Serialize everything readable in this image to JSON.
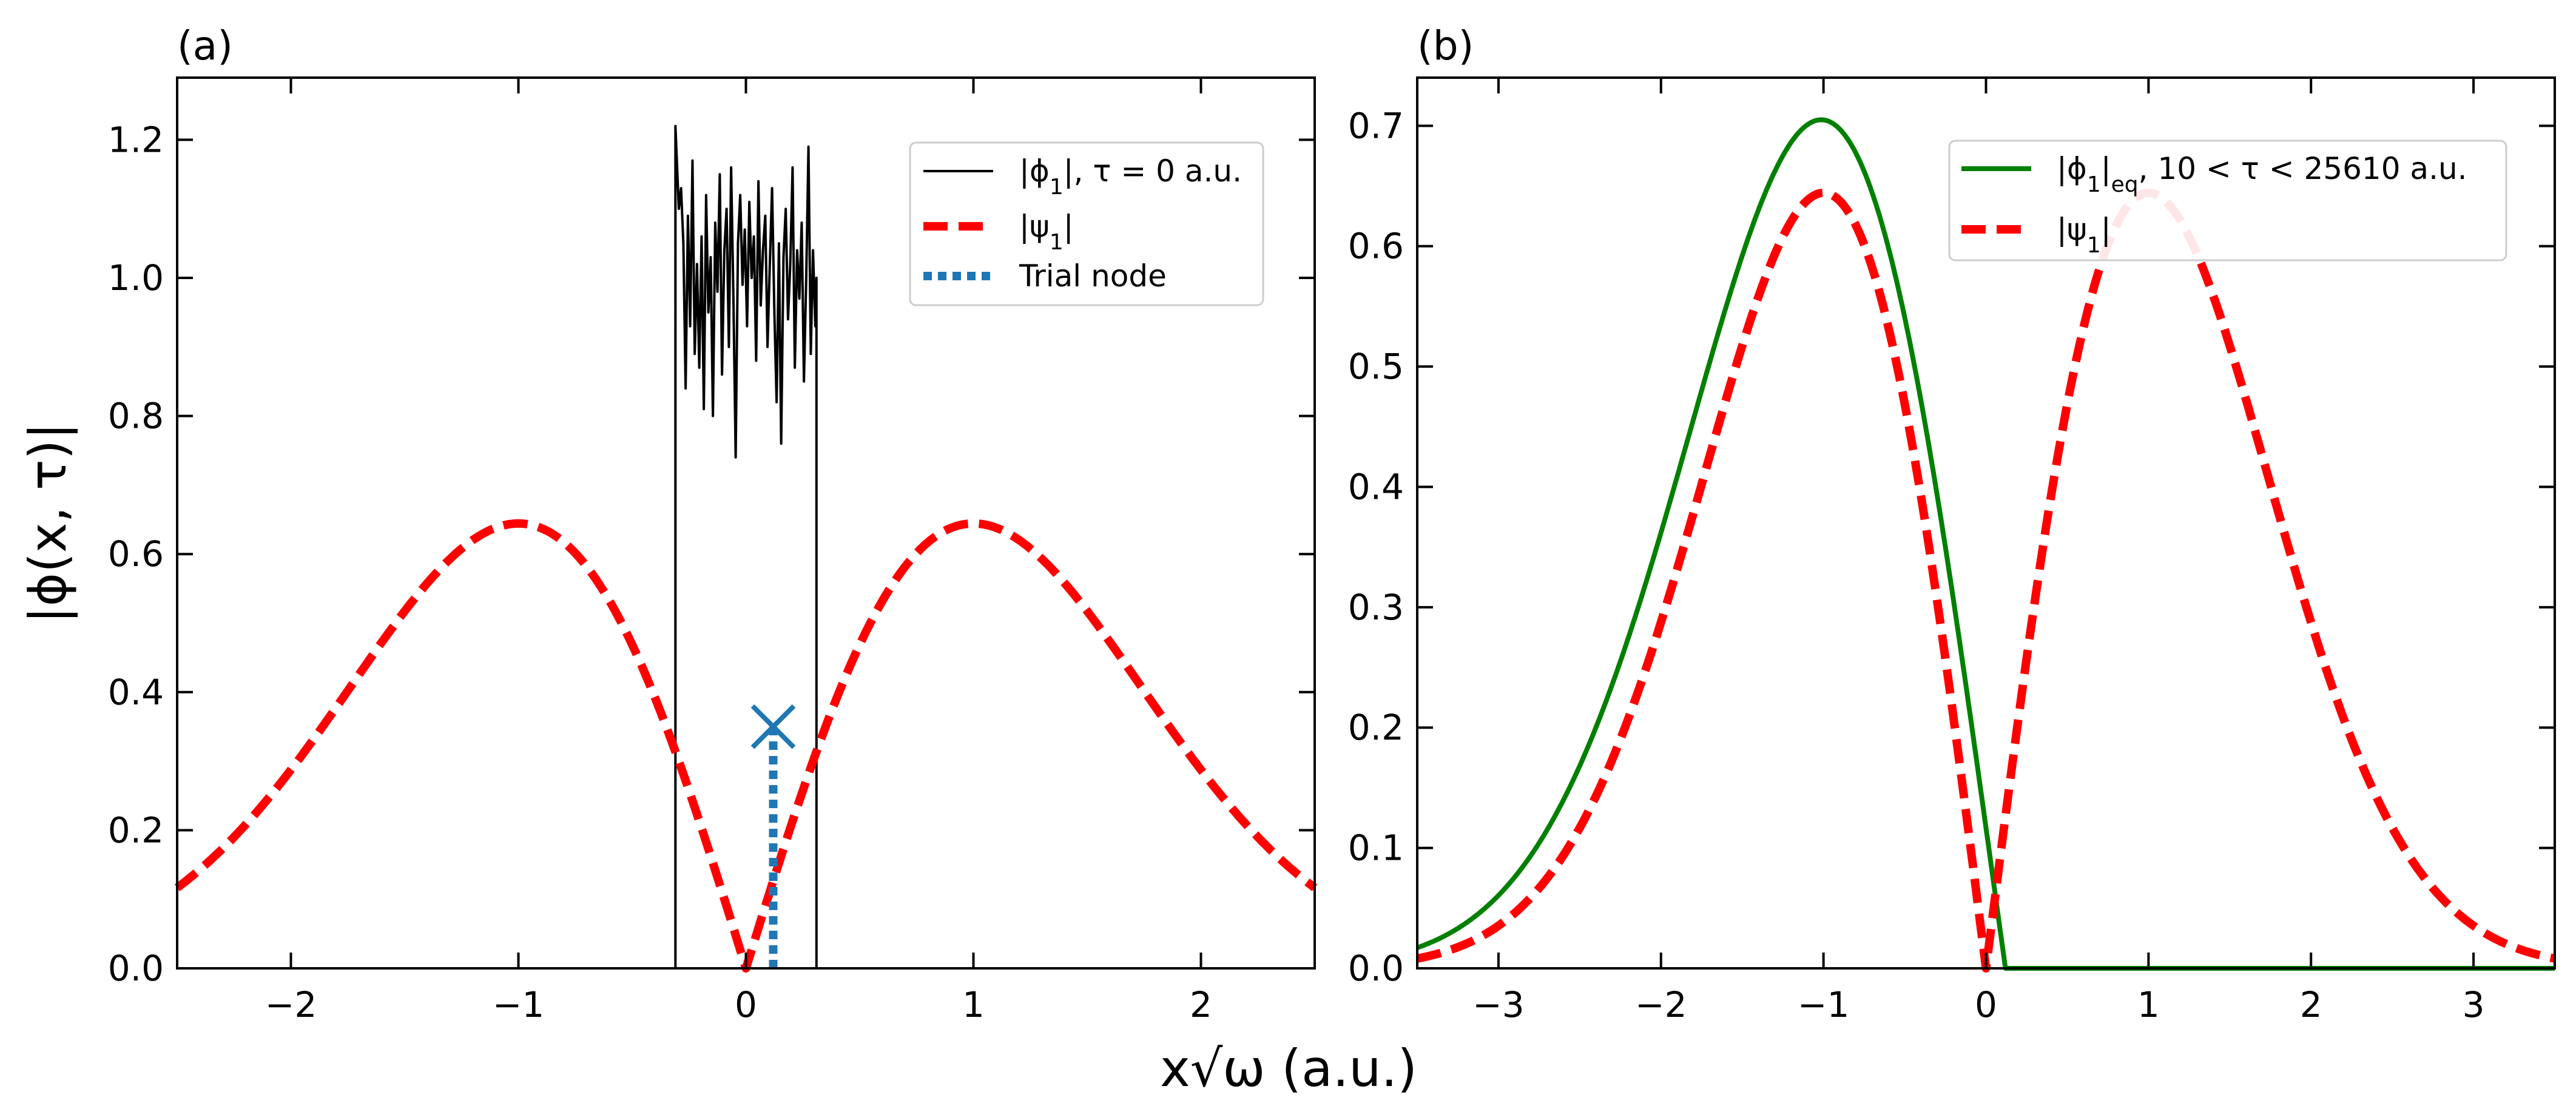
{
  "figure": {
    "xlabel": "x√ω (a.u.)",
    "ylabel": "|ϕ(x, τ)|"
  },
  "chart_data": [
    {
      "id": "a",
      "type": "line",
      "panel_label": "(a)",
      "xlim": [
        -2.5,
        2.5
      ],
      "ylim": [
        0,
        1.29
      ],
      "xticks": [
        -2,
        -1,
        0,
        1,
        2
      ],
      "xtick_labels": [
        "−2",
        "−1",
        "0",
        "1",
        "2"
      ],
      "yticks": [
        0,
        0.2,
        0.4,
        0.6,
        0.8,
        1.0,
        1.2
      ],
      "ytick_labels": [
        "0.0",
        "0.2",
        "0.4",
        "0.6",
        "0.8",
        "1.0",
        "1.2"
      ],
      "legend_position": "upper right",
      "series": [
        {
          "name": "|ϕ1|, τ = 0 a.u.",
          "legend": [
            "|ϕ",
            "1",
            "|, τ = 0 a.u."
          ],
          "color": "#000000",
          "style": "solid",
          "kind": "noisy_box",
          "x_start": -0.31,
          "x_end": 0.31,
          "points": [
            [
              -0.31,
              0.0
            ],
            [
              -0.31,
              1.22
            ],
            [
              -0.295,
              1.1
            ],
            [
              -0.285,
              1.13
            ],
            [
              -0.275,
              1.05
            ],
            [
              -0.265,
              0.84
            ],
            [
              -0.255,
              1.09
            ],
            [
              -0.245,
              0.93
            ],
            [
              -0.235,
              1.17
            ],
            [
              -0.225,
              0.89
            ],
            [
              -0.215,
              1.02
            ],
            [
              -0.205,
              0.87
            ],
            [
              -0.195,
              1.06
            ],
            [
              -0.185,
              0.81
            ],
            [
              -0.175,
              1.12
            ],
            [
              -0.165,
              0.95
            ],
            [
              -0.155,
              1.03
            ],
            [
              -0.145,
              0.8
            ],
            [
              -0.135,
              1.08
            ],
            [
              -0.125,
              0.98
            ],
            [
              -0.115,
              1.15
            ],
            [
              -0.105,
              0.86
            ],
            [
              -0.095,
              1.04
            ],
            [
              -0.085,
              1.1
            ],
            [
              -0.075,
              0.9
            ],
            [
              -0.065,
              1.16
            ],
            [
              -0.055,
              0.97
            ],
            [
              -0.045,
              0.74
            ],
            [
              -0.035,
              1.05
            ],
            [
              -0.025,
              1.12
            ],
            [
              -0.015,
              0.99
            ],
            [
              -0.005,
              1.07
            ],
            [
              0.005,
              0.93
            ],
            [
              0.015,
              1.11
            ],
            [
              0.025,
              1.0
            ],
            [
              0.035,
              1.06
            ],
            [
              0.045,
              0.88
            ],
            [
              0.055,
              1.14
            ],
            [
              0.065,
              0.96
            ],
            [
              0.075,
              1.04
            ],
            [
              0.085,
              1.09
            ],
            [
              0.095,
              0.9
            ],
            [
              0.105,
              1.02
            ],
            [
              0.115,
              1.13
            ],
            [
              0.125,
              0.95
            ],
            [
              0.135,
              0.82
            ],
            [
              0.145,
              1.05
            ],
            [
              0.155,
              0.76
            ],
            [
              0.165,
              1.03
            ],
            [
              0.175,
              1.1
            ],
            [
              0.185,
              0.94
            ],
            [
              0.195,
              1.02
            ],
            [
              0.205,
              1.16
            ],
            [
              0.215,
              0.87
            ],
            [
              0.225,
              1.04
            ],
            [
              0.235,
              0.97
            ],
            [
              0.245,
              1.08
            ],
            [
              0.255,
              0.85
            ],
            [
              0.265,
              1.0
            ],
            [
              0.275,
              1.19
            ],
            [
              0.285,
              0.89
            ],
            [
              0.295,
              1.04
            ],
            [
              0.305,
              0.93
            ],
            [
              0.31,
              1.0
            ],
            [
              0.31,
              0.0
            ]
          ]
        },
        {
          "name": "|ψ1|",
          "legend": [
            "|ψ",
            "1",
            "|"
          ],
          "color": "#ff0000",
          "style": "dashed",
          "kind": "first_excited_state"
        },
        {
          "name": "Trial node",
          "legend": [
            "Trial node",
            "",
            ""
          ],
          "color": "#1f77b4",
          "style": "dotted",
          "kind": "vertical_node",
          "x": 0.12,
          "y_top": 0.35
        }
      ]
    },
    {
      "id": "b",
      "type": "line",
      "panel_label": "(b)",
      "xlim": [
        -3.5,
        3.5
      ],
      "ylim": [
        0,
        0.74
      ],
      "xticks": [
        -3,
        -2,
        -1,
        0,
        1,
        2,
        3
      ],
      "xtick_labels": [
        "−3",
        "−2",
        "−1",
        "0",
        "1",
        "2",
        "3"
      ],
      "yticks": [
        0,
        0.1,
        0.2,
        0.3,
        0.4,
        0.5,
        0.6,
        0.7
      ],
      "ytick_labels": [
        "0.0",
        "0.1",
        "0.2",
        "0.3",
        "0.4",
        "0.5",
        "0.6",
        "0.7"
      ],
      "legend_position": "upper right",
      "series": [
        {
          "name": "|ϕ1|eq, 10 < τ < 25610 a.u.",
          "legend": [
            "|ϕ",
            "1",
            "|",
            "eq",
            ", 10 < τ < 25610 a.u."
          ],
          "color": "#008000",
          "style": "solid",
          "kind": "fixed_node_ground",
          "node": 0.12,
          "peak": 0.705
        },
        {
          "name": "|ψ1|",
          "legend": [
            "|ψ",
            "1",
            "|"
          ],
          "color": "#ff0000",
          "style": "dashed",
          "kind": "first_excited_state"
        }
      ]
    }
  ]
}
